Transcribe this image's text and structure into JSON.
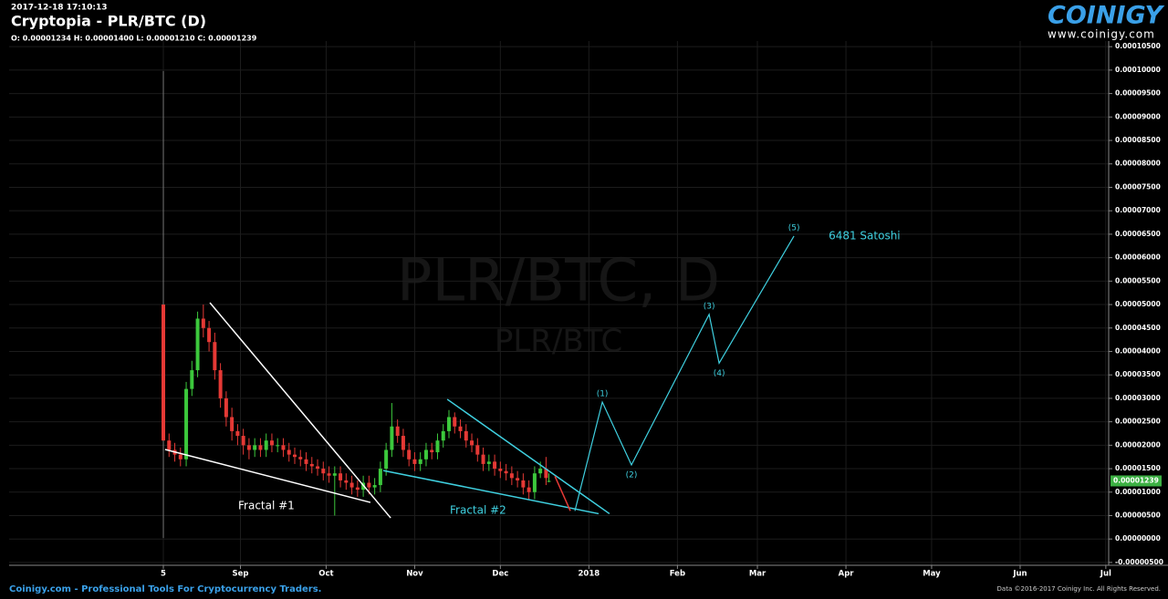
{
  "brand": {
    "logo": "COINIGY",
    "url": "www.coinigy.com"
  },
  "footer": {
    "left": "Coinigy.com - Professional Tools For Cryptocurrency Traders.",
    "right": "Data ©2016-2017 Coinigy Inc. All Rights Reserved."
  },
  "chart_data": {
    "type": "candlestick",
    "timestamp": "2017-12-18 17:10:13",
    "title": "Cryptopia - PLR/BTC (D)",
    "ohlc_summary": "O: 0.00001234 H: 0.00001400 L: 0.00001210 C: 0.00001239",
    "watermark": "PLR/BTC, D",
    "watermark_sub": "PLR/BTC",
    "up_color": "#3cc83c",
    "down_color": "#e53935",
    "grid": true,
    "xlim": [
      -54,
      331
    ],
    "xticks": [
      {
        "value": 0,
        "label": "5"
      },
      {
        "value": 27,
        "label": "Sep"
      },
      {
        "value": 57,
        "label": "Oct"
      },
      {
        "value": 88,
        "label": "Nov"
      },
      {
        "value": 118,
        "label": "Dec"
      },
      {
        "value": 149,
        "label": "2018"
      },
      {
        "value": 180,
        "label": "Feb"
      },
      {
        "value": 208,
        "label": "Mar"
      },
      {
        "value": 239,
        "label": "Apr"
      },
      {
        "value": 269,
        "label": "May"
      },
      {
        "value": 300,
        "label": "Jun"
      },
      {
        "value": 330,
        "label": "Jul"
      }
    ],
    "ylim": [
      -5.6e-06,
      0.0001062
    ],
    "yticks": [
      {
        "value": -5e-06,
        "label": "-0.00000500"
      },
      {
        "value": 0,
        "label": "0.00000000"
      },
      {
        "value": 5e-06,
        "label": "0.00000500"
      },
      {
        "value": 1e-05,
        "label": "0.00001000"
      },
      {
        "value": 1.5e-05,
        "label": "0.00001500"
      },
      {
        "value": 2e-05,
        "label": "0.00002000"
      },
      {
        "value": 2.5e-05,
        "label": "0.00002500"
      },
      {
        "value": 3e-05,
        "label": "0.00003000"
      },
      {
        "value": 3.5e-05,
        "label": "0.00003500"
      },
      {
        "value": 4e-05,
        "label": "0.00004000"
      },
      {
        "value": 4.5e-05,
        "label": "0.00004500"
      },
      {
        "value": 5e-05,
        "label": "0.00005000"
      },
      {
        "value": 5.5e-05,
        "label": "0.00005500"
      },
      {
        "value": 6e-05,
        "label": "0.00006000"
      },
      {
        "value": 6.5e-05,
        "label": "0.00006500"
      },
      {
        "value": 7e-05,
        "label": "0.00007000"
      },
      {
        "value": 7.5e-05,
        "label": "0.00007500"
      },
      {
        "value": 8e-05,
        "label": "0.00008000"
      },
      {
        "value": 8.5e-05,
        "label": "0.00008500"
      },
      {
        "value": 9e-05,
        "label": "0.00009000"
      },
      {
        "value": 9.5e-05,
        "label": "0.00009500"
      },
      {
        "value": 0.0001,
        "label": "0.00010000"
      },
      {
        "value": 0.000105,
        "label": "0.00010500"
      }
    ],
    "last_price": {
      "value": 1.239e-05,
      "label": "0.00001239",
      "color": "#3cb043"
    },
    "x": [
      0,
      2,
      4,
      6,
      8,
      10,
      12,
      14,
      16,
      18,
      20,
      22,
      24,
      26,
      28,
      30,
      32,
      34,
      36,
      38,
      40,
      42,
      44,
      46,
      48,
      50,
      52,
      54,
      56,
      58,
      60,
      62,
      64,
      66,
      68,
      70,
      72,
      74,
      76,
      78,
      80,
      82,
      84,
      86,
      88,
      90,
      92,
      94,
      96,
      98,
      100,
      102,
      104,
      106,
      108,
      110,
      112,
      114,
      116,
      118,
      120,
      122,
      124,
      126,
      128,
      130,
      132,
      134,
      135
    ],
    "open": [
      5e-05,
      2.1e-05,
      1.9e-05,
      1.8e-05,
      1.7e-05,
      3.2e-05,
      3.6e-05,
      4.7e-05,
      4.5e-05,
      4.2e-05,
      3.6e-05,
      3e-05,
      2.6e-05,
      2.3e-05,
      2.2e-05,
      2e-05,
      1.9e-05,
      2e-05,
      1.9e-05,
      2.1e-05,
      2e-05,
      2e-05,
      1.9e-05,
      1.8e-05,
      1.75e-05,
      1.7e-05,
      1.6e-05,
      1.55e-05,
      1.5e-05,
      1.4e-05,
      1.35e-05,
      1.4e-05,
      1.25e-05,
      1.2e-05,
      1.1e-05,
      1.05e-05,
      1.2e-05,
      1.1e-05,
      1.15e-05,
      1.5e-05,
      1.9e-05,
      2.4e-05,
      2.2e-05,
      1.9e-05,
      1.7e-05,
      1.6e-05,
      1.7e-05,
      1.9e-05,
      1.85e-05,
      2.1e-05,
      2.3e-05,
      2.6e-05,
      2.4e-05,
      2.3e-05,
      2.1e-05,
      2e-05,
      1.8e-05,
      1.6e-05,
      1.65e-05,
      1.5e-05,
      1.45e-05,
      1.4e-05,
      1.3e-05,
      1.25e-05,
      1.1e-05,
      1e-05,
      1.4e-05,
      1.5e-05,
      1.234e-05
    ],
    "high": [
      9.98e-05,
      2.25e-05,
      2.05e-05,
      1.95e-05,
      3.35e-05,
      3.8e-05,
      4.85e-05,
      5e-05,
      4.65e-05,
      4.4e-05,
      3.75e-05,
      3.15e-05,
      2.8e-05,
      2.45e-05,
      2.35e-05,
      2.15e-05,
      2.15e-05,
      2.15e-05,
      2.25e-05,
      2.25e-05,
      2.15e-05,
      2.15e-05,
      2.05e-05,
      1.95e-05,
      1.9e-05,
      1.85e-05,
      1.75e-05,
      1.7e-05,
      1.65e-05,
      1.55e-05,
      1.55e-05,
      1.55e-05,
      1.4e-05,
      1.35e-05,
      1.25e-05,
      1.35e-05,
      1.35e-05,
      1.3e-05,
      1.65e-05,
      2.05e-05,
      2.9e-05,
      2.55e-05,
      2.35e-05,
      2.05e-05,
      1.85e-05,
      1.85e-05,
      2.05e-05,
      2.05e-05,
      2.25e-05,
      2.45e-05,
      2.75e-05,
      2.7e-05,
      2.55e-05,
      2.45e-05,
      2.25e-05,
      2.15e-05,
      1.95e-05,
      1.8e-05,
      1.8e-05,
      1.65e-05,
      1.6e-05,
      1.55e-05,
      1.45e-05,
      1.4e-05,
      1.25e-05,
      1.55e-05,
      1.65e-05,
      1.75e-05,
      1.4e-05
    ],
    "low": [
      2e-07,
      1.75e-05,
      1.65e-05,
      1.55e-05,
      1.55e-05,
      3.05e-05,
      3.45e-05,
      4.3e-05,
      4e-05,
      3.4e-05,
      2.8e-05,
      2.4e-05,
      2.1e-05,
      2e-05,
      1.8e-05,
      1.7e-05,
      1.75e-05,
      1.75e-05,
      1.75e-05,
      1.85e-05,
      1.85e-05,
      1.75e-05,
      1.65e-05,
      1.6e-05,
      1.55e-05,
      1.45e-05,
      1.4e-05,
      1.35e-05,
      1.25e-05,
      1.2e-05,
      5e-06,
      1.1e-05,
      1.05e-05,
      9.5e-06,
      9e-06,
      9e-06,
      9.5e-06,
      9.5e-06,
      1e-05,
      1.35e-05,
      1.75e-05,
      2.05e-05,
      1.75e-05,
      1.55e-05,
      1.45e-05,
      1.45e-05,
      1.55e-05,
      1.7e-05,
      1.7e-05,
      1.95e-05,
      2.15e-05,
      2.25e-05,
      2.15e-05,
      1.95e-05,
      1.85e-05,
      1.65e-05,
      1.45e-05,
      1.45e-05,
      1.35e-05,
      1.3e-05,
      1.25e-05,
      1.15e-05,
      1.1e-05,
      9.5e-06,
      8.5e-06,
      8.5e-06,
      1.3e-05,
      1.15e-05,
      1.21e-05
    ],
    "close": [
      2.1e-05,
      1.9e-05,
      1.8e-05,
      1.7e-05,
      3.2e-05,
      3.6e-05,
      4.7e-05,
      4.5e-05,
      4.2e-05,
      3.6e-05,
      3e-05,
      2.6e-05,
      2.3e-05,
      2.2e-05,
      2e-05,
      1.9e-05,
      2e-05,
      1.9e-05,
      2.1e-05,
      2e-05,
      2e-05,
      1.9e-05,
      1.8e-05,
      1.75e-05,
      1.7e-05,
      1.6e-05,
      1.55e-05,
      1.5e-05,
      1.4e-05,
      1.35e-05,
      1.4e-05,
      1.25e-05,
      1.2e-05,
      1.1e-05,
      1.05e-05,
      1.2e-05,
      1.1e-05,
      1.15e-05,
      1.5e-05,
      1.9e-05,
      2.4e-05,
      2.2e-05,
      1.9e-05,
      1.7e-05,
      1.6e-05,
      1.7e-05,
      1.9e-05,
      1.85e-05,
      2.1e-05,
      2.3e-05,
      2.6e-05,
      2.4e-05,
      2.3e-05,
      2.1e-05,
      2e-05,
      1.8e-05,
      1.6e-05,
      1.65e-05,
      1.5e-05,
      1.45e-05,
      1.4e-05,
      1.3e-05,
      1.25e-05,
      1.1e-05,
      1e-05,
      1.4e-05,
      1.5e-05,
      1.3e-05,
      1.239e-05
    ],
    "trendlines": [
      {
        "color": "#ffffff",
        "x": [
          16.3,
          79.6
        ],
        "values": [
          5.04e-05,
          4.5e-06
        ]
      },
      {
        "color": "#ffffff",
        "x": [
          0.6,
          72.5
        ],
        "values": [
          1.91e-05,
          7.8e-06
        ]
      },
      {
        "color": "#3fd0e0",
        "x": [
          99.4,
          156.2
        ],
        "values": [
          2.98e-05,
          5.4e-06
        ]
      },
      {
        "color": "#3fd0e0",
        "x": [
          77,
          152.4
        ],
        "values": [
          1.46e-05,
          5.4e-06
        ]
      },
      {
        "color": "#e53935",
        "x": [
          137.1,
          142.5
        ],
        "values": [
          1.34e-05,
          6e-06
        ]
      }
    ],
    "projection": {
      "color": "#3fd0e0",
      "x": [
        144.1,
        153.7,
        163.9,
        191.1,
        194.6,
        220.8
      ],
      "values": [
        6e-06,
        2.92e-05,
        1.58e-05,
        4.79e-05,
        3.75e-05,
        6.46e-05
      ],
      "labels": [
        null,
        "(1)",
        "(2)",
        "(3)",
        "(4)",
        "(5)"
      ]
    },
    "target_label": "6481 Satoshi",
    "annotations": [
      {
        "text": "Fractal #1",
        "color": "#ffffff"
      },
      {
        "text": "Fractal #2",
        "color": "#3fd0e0"
      }
    ]
  }
}
